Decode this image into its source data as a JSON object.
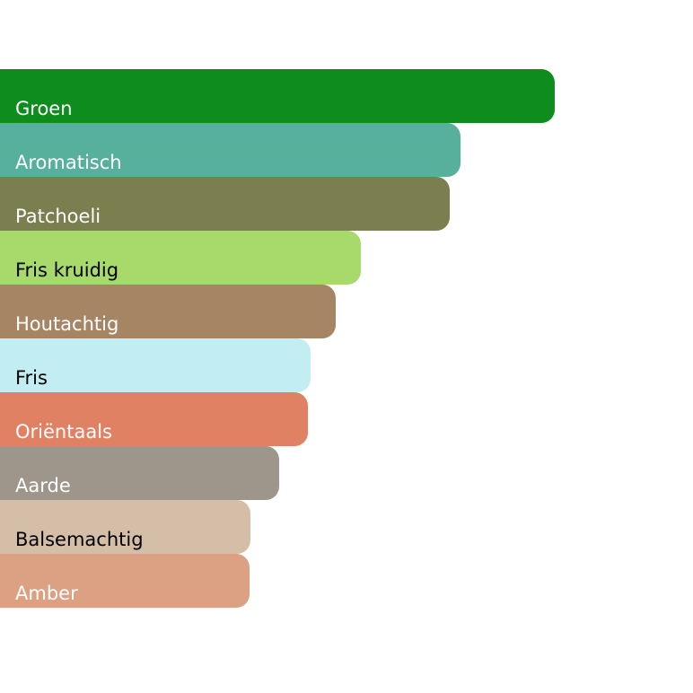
{
  "chart_data": {
    "type": "bar",
    "orientation": "horizontal",
    "title": "",
    "xlabel": "",
    "ylabel": "",
    "xlim": [
      0,
      100
    ],
    "grid": false,
    "legend": "none",
    "categories": [
      "Groen",
      "Aromatisch",
      "Patchoeli",
      "Fris kruidig",
      "Houtachtig",
      "Fris",
      "Oriëntaals",
      "Aarde",
      "Balsemachtig",
      "Amber"
    ],
    "values": [
      100,
      83,
      81,
      65,
      60.5,
      56,
      55.5,
      50.3,
      45.1,
      45
    ],
    "colors": [
      "#0e8c1d",
      "#56b09b",
      "#7b7f50",
      "#a8d96b",
      "#a68564",
      "#c2eef3",
      "#e08163",
      "#9f968b",
      "#d5bea7",
      "#dca083"
    ],
    "label_colors": [
      "#ffffff",
      "#ffffff",
      "#ffffff",
      "#000000",
      "#ffffff",
      "#000000",
      "#ffffff",
      "#ffffff",
      "#000000",
      "#ffffff"
    ]
  }
}
